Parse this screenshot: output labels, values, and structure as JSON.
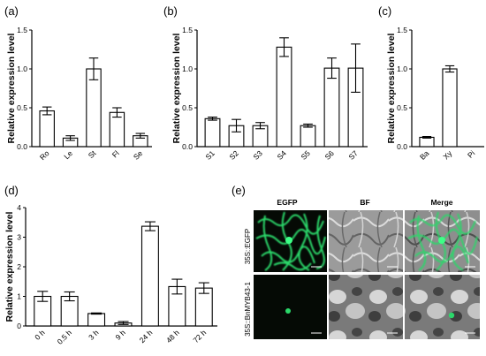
{
  "chart_data": [
    {
      "panel": "(a)",
      "type": "bar",
      "ylabel": "Relative expression level",
      "ylim": [
        0,
        1.5
      ],
      "yticks": [
        "0.0",
        "0.5",
        "1.0",
        "1.5"
      ],
      "categories": [
        "Ro",
        "Le",
        "St",
        "Fl",
        "Se"
      ],
      "values": [
        0.46,
        0.11,
        1.0,
        0.44,
        0.14
      ],
      "errors": [
        0.05,
        0.03,
        0.14,
        0.06,
        0.03
      ]
    },
    {
      "panel": "(b)",
      "type": "bar",
      "ylabel": "Relative expression level",
      "ylim": [
        0,
        1.5
      ],
      "yticks": [
        "0.0",
        "0.5",
        "1.0",
        "1.5"
      ],
      "categories": [
        "S1",
        "S2",
        "S3",
        "S4",
        "S5",
        "S6",
        "S7"
      ],
      "values": [
        0.36,
        0.27,
        0.27,
        1.28,
        0.27,
        1.01,
        1.01
      ],
      "errors": [
        0.02,
        0.08,
        0.04,
        0.12,
        0.02,
        0.13,
        0.31
      ]
    },
    {
      "panel": "(c)",
      "type": "bar",
      "ylabel": "Relative expression level",
      "ylim": [
        0,
        1.5
      ],
      "yticks": [
        "0.0",
        "0.5",
        "1.0",
        "1.5"
      ],
      "categories": [
        "Ba",
        "Xy",
        "Pi"
      ],
      "values": [
        0.12,
        1.0,
        0.0
      ],
      "errors": [
        0.01,
        0.04,
        0.0
      ]
    },
    {
      "panel": "(d)",
      "type": "bar",
      "ylabel": "Relative expression level",
      "ylim": [
        0,
        4
      ],
      "yticks": [
        "0",
        "1",
        "2",
        "3",
        "4"
      ],
      "categories": [
        "0 h",
        "0.5 h",
        "3 h",
        "9 h",
        "24 h",
        "48 h",
        "72 h"
      ],
      "values": [
        1.0,
        1.0,
        0.42,
        0.1,
        3.37,
        1.33,
        1.28
      ],
      "errors": [
        0.17,
        0.15,
        0.02,
        0.05,
        0.15,
        0.25,
        0.18
      ]
    }
  ],
  "microscopy": {
    "panel": "(e)",
    "columns": [
      "EGFP",
      "BF",
      "Merge"
    ],
    "rows": [
      "35S::EGFP",
      "35S::BnMYB43-1"
    ],
    "colors": {
      "gfp": "#2bd86a",
      "dark": "#050a05",
      "bf_light": "#b9b9b9",
      "bf_dark": "#4a4a4a"
    }
  }
}
